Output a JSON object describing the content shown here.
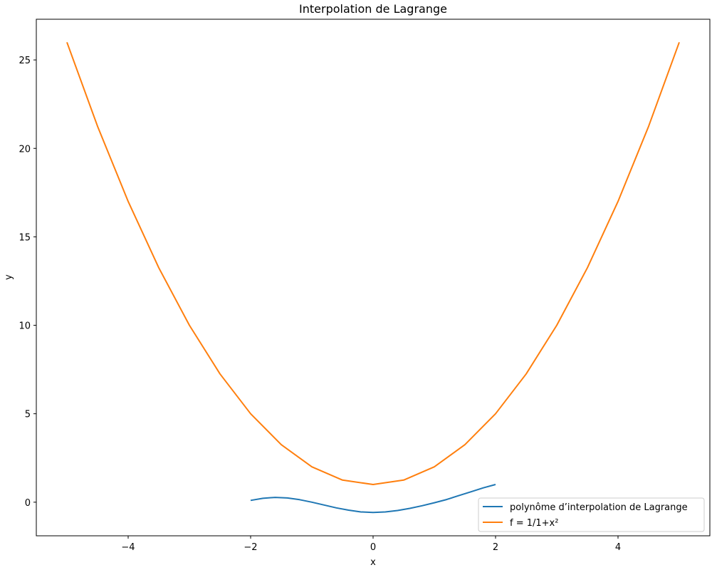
{
  "chart_data": {
    "type": "line",
    "title": "Interpolation de Lagrange",
    "xlabel": "x",
    "ylabel": "y",
    "xlim": [
      -5.5,
      5.5
    ],
    "ylim": [
      -1.9,
      27.3
    ],
    "xticks": [
      -4,
      -2,
      0,
      2,
      4
    ],
    "yticks": [
      0,
      5,
      10,
      15,
      20,
      25
    ],
    "grid": false,
    "legend_position": "lower-right",
    "series": [
      {
        "name": "polynôme d’interpolation de Lagrange",
        "color": "#1f77b4",
        "x": [
          -2.0,
          -1.8,
          -1.6,
          -1.4,
          -1.2,
          -1.0,
          -0.8,
          -0.6,
          -0.4,
          -0.2,
          0.0,
          0.2,
          0.4,
          0.6,
          0.8,
          1.0,
          1.2,
          1.4,
          1.6,
          1.8,
          2.0
        ],
        "y": [
          0.1,
          0.22,
          0.27,
          0.24,
          0.14,
          0.0,
          -0.16,
          -0.32,
          -0.45,
          -0.55,
          -0.58,
          -0.55,
          -0.47,
          -0.35,
          -0.2,
          -0.03,
          0.15,
          0.37,
          0.59,
          0.81,
          1.0
        ]
      },
      {
        "name": "f = 1/1+x²",
        "color": "#ff7f0e",
        "x": [
          -5.0,
          -4.5,
          -4.0,
          -3.5,
          -3.0,
          -2.5,
          -2.0,
          -1.5,
          -1.0,
          -0.5,
          0.0,
          0.5,
          1.0,
          1.5,
          2.0,
          2.5,
          3.0,
          3.5,
          4.0,
          4.5,
          5.0
        ],
        "y": [
          26.0,
          21.25,
          17.0,
          13.25,
          10.0,
          7.25,
          5.0,
          3.25,
          2.0,
          1.25,
          1.0,
          1.25,
          2.0,
          3.25,
          5.0,
          7.25,
          10.0,
          13.25,
          17.0,
          21.25,
          26.0
        ]
      }
    ]
  }
}
